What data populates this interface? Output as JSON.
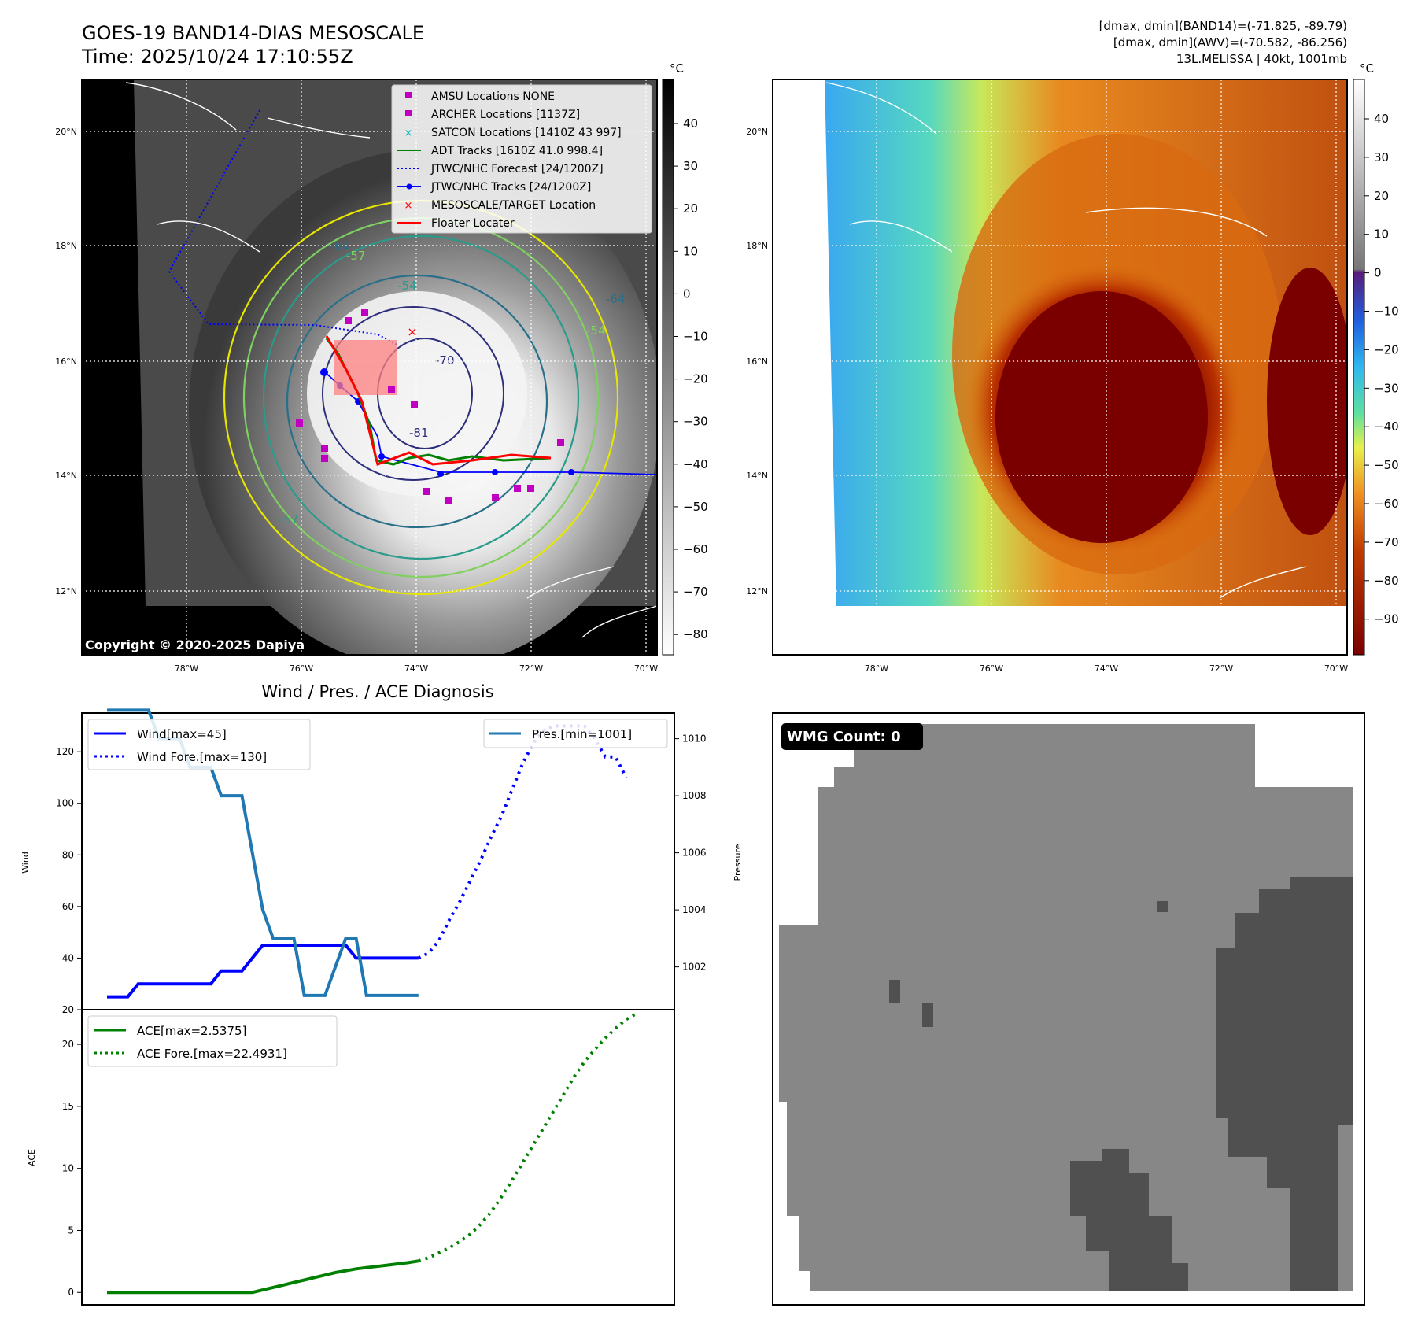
{
  "header": {
    "title": "GOES-19 BAND14-DIAS MESOSCALE",
    "time": "Time: 2025/10/24 17:10:55Z",
    "dmax_band14": "[dmax, dmin](BAND14)=(-71.825, -89.79)",
    "dmax_awv": "[dmax, dmin](AWV)=(-70.582, -86.256)",
    "storm": "13L.MELISSA | 40kt, 1001mb"
  },
  "map_ir": {
    "copyright": "Copyright © 2020-2025 Dapiya",
    "colorbar_unit": "°C",
    "colorbar_ticks": [
      "40",
      "30",
      "20",
      "10",
      "0",
      "−10",
      "−20",
      "−30",
      "−40",
      "−50",
      "−60",
      "−70",
      "−80"
    ],
    "lat_labels": [
      "20°N",
      "18°N",
      "16°N",
      "14°N",
      "12°N"
    ],
    "lon_labels": [
      "78°W",
      "76°W",
      "74°W",
      "72°W",
      "70°W"
    ],
    "contour_labels": [
      "-64",
      "-57",
      "-54",
      "-64",
      "-70",
      "-81",
      "-57",
      "-54"
    ],
    "legend": [
      {
        "label": "AMSU Locations NONE",
        "color": "#c000c0",
        "marker": "square"
      },
      {
        "label": "ARCHER Locations [1137Z]",
        "color": "#c000c0",
        "marker": "square"
      },
      {
        "label": "SATCON Locations [1410Z 43 997]",
        "color": "#00c0c0",
        "marker": "x"
      },
      {
        "label": "ADT Tracks [1610Z 41.0 998.4]",
        "color": "#008000",
        "marker": "line"
      },
      {
        "label": "JTWC/NHC Forecast [24/1200Z]",
        "color": "#0000ff",
        "marker": "dotted"
      },
      {
        "label": "JTWC/NHC Tracks [24/1200Z]",
        "color": "#0000ff",
        "marker": "line-dot"
      },
      {
        "label": "MESOSCALE/TARGET Location",
        "color": "#ff0000",
        "marker": "x"
      },
      {
        "label": "Floater Locater",
        "color": "#ff0000",
        "marker": "line"
      }
    ]
  },
  "map_awv": {
    "colorbar_unit": "°C",
    "colorbar_ticks": [
      "40",
      "30",
      "20",
      "10",
      "0",
      "−10",
      "−20",
      "−30",
      "−40",
      "−50",
      "−60",
      "−70",
      "−80",
      "−90"
    ],
    "lat_labels": [
      "20°N",
      "18°N",
      "16°N",
      "14°N",
      "12°N"
    ],
    "lon_labels": [
      "78°W",
      "76°W",
      "74°W",
      "72°W",
      "70°W"
    ]
  },
  "wmg": {
    "badge": "WMG Count: 0"
  },
  "colors": {
    "wind": "#0000ff",
    "pressure": "#1f77b4",
    "ace": "#008000"
  },
  "chart_data": [
    {
      "type": "line",
      "title": "Wind / Pres. / ACE Diagnosis",
      "ylabel": "Wind",
      "ylim": [
        20,
        135
      ],
      "yticks": [
        "20",
        "40",
        "60",
        "80",
        "100",
        "120"
      ],
      "x": [
        0,
        1,
        2,
        3,
        4,
        5,
        6,
        7,
        8,
        9,
        10,
        11,
        12,
        13,
        14,
        15,
        16,
        17,
        18,
        19,
        20,
        21,
        22,
        23,
        24,
        25,
        26,
        27,
        28,
        29,
        30,
        31,
        32,
        33,
        34,
        35,
        36,
        37,
        38,
        39,
        40,
        41,
        42,
        43,
        44,
        45,
        46,
        47,
        48,
        49,
        50,
        51,
        52
      ],
      "series": [
        {
          "name": "Wind[max=45]",
          "style": "solid",
          "values": [
            25,
            25,
            25,
            30,
            30,
            30,
            30,
            30,
            30,
            30,
            30,
            35,
            35,
            35,
            40,
            45,
            45,
            45,
            45,
            45,
            45,
            45,
            45,
            45,
            40,
            40,
            40,
            40,
            40,
            40,
            40,
            null,
            null,
            null,
            null,
            null,
            null,
            null,
            null,
            null,
            null,
            null,
            null,
            null,
            null,
            null,
            null,
            null,
            null,
            null,
            null,
            null,
            null
          ]
        },
        {
          "name": "Wind Fore.[max=130]",
          "style": "dotted",
          "values": [
            null,
            null,
            null,
            null,
            null,
            null,
            null,
            null,
            null,
            null,
            null,
            null,
            null,
            null,
            null,
            null,
            null,
            null,
            null,
            null,
            null,
            null,
            null,
            null,
            null,
            null,
            null,
            null,
            null,
            null,
            40,
            42,
            47,
            55,
            62,
            70,
            78,
            87,
            95,
            105,
            115,
            123,
            128,
            130,
            130,
            130,
            130,
            125,
            118,
            118,
            110,
            null,
            null
          ]
        }
      ]
    },
    {
      "type": "line",
      "ylabel": "Pressure",
      "ylim": [
        1000.5,
        1010.9
      ],
      "yticks": [
        "1002",
        "1004",
        "1006",
        "1008",
        "1010"
      ],
      "x": [
        0,
        1,
        2,
        3,
        4,
        5,
        6,
        7,
        8,
        9,
        10,
        11,
        12,
        13,
        14,
        15,
        16,
        17,
        18,
        19,
        20,
        21,
        22,
        23,
        24,
        25,
        26,
        27,
        28,
        29,
        30
      ],
      "series": [
        {
          "name": "Pres.[min=1001]",
          "style": "solid",
          "values": [
            1011,
            1011,
            1011,
            1011,
            1011,
            1010,
            1010,
            1010,
            1009,
            1009,
            1009,
            1008,
            1008,
            1008,
            1006,
            1004,
            1003,
            1003,
            1003,
            1001,
            1001,
            1001,
            1002,
            1003,
            1003,
            1001,
            1001,
            1001,
            1001,
            1001,
            1001
          ]
        }
      ]
    },
    {
      "type": "line",
      "ylabel": "ACE",
      "ylim": [
        -1,
        22.8
      ],
      "yticks": [
        "0",
        "5",
        "10",
        "15",
        "20"
      ],
      "x": [
        0,
        1,
        2,
        3,
        4,
        5,
        6,
        7,
        8,
        9,
        10,
        11,
        12,
        13,
        14,
        15,
        16,
        17,
        18,
        19,
        20,
        21,
        22,
        23,
        24,
        25,
        26,
        27,
        28,
        29,
        30,
        31,
        32,
        33,
        34,
        35,
        36,
        37,
        38,
        39,
        40,
        41,
        42,
        43,
        44,
        45,
        46,
        47,
        48,
        49,
        50,
        51,
        52
      ],
      "series": [
        {
          "name": "ACE[max=2.5375]",
          "style": "solid",
          "values": [
            0,
            0,
            0,
            0,
            0,
            0,
            0,
            0,
            0,
            0,
            0,
            0,
            0,
            0,
            0,
            0.2,
            0.4,
            0.6,
            0.8,
            1.0,
            1.2,
            1.4,
            1.6,
            1.75,
            1.9,
            2.0,
            2.1,
            2.2,
            2.3,
            2.4,
            2.5375,
            null,
            null,
            null,
            null,
            null,
            null,
            null,
            null,
            null,
            null,
            null,
            null,
            null,
            null,
            null,
            null,
            null,
            null,
            null,
            null,
            null,
            null
          ]
        },
        {
          "name": "ACE Fore.[max=22.4931]",
          "style": "dotted",
          "values": [
            null,
            null,
            null,
            null,
            null,
            null,
            null,
            null,
            null,
            null,
            null,
            null,
            null,
            null,
            null,
            null,
            null,
            null,
            null,
            null,
            null,
            null,
            null,
            null,
            null,
            null,
            null,
            null,
            null,
            null,
            2.5375,
            2.8,
            3.2,
            3.6,
            4.1,
            4.7,
            5.5,
            6.5,
            7.7,
            9.0,
            10.4,
            11.8,
            13.2,
            14.6,
            16.0,
            17.4,
            18.6,
            19.6,
            20.5,
            21.3,
            22.0,
            22.4931,
            null
          ]
        }
      ]
    }
  ]
}
